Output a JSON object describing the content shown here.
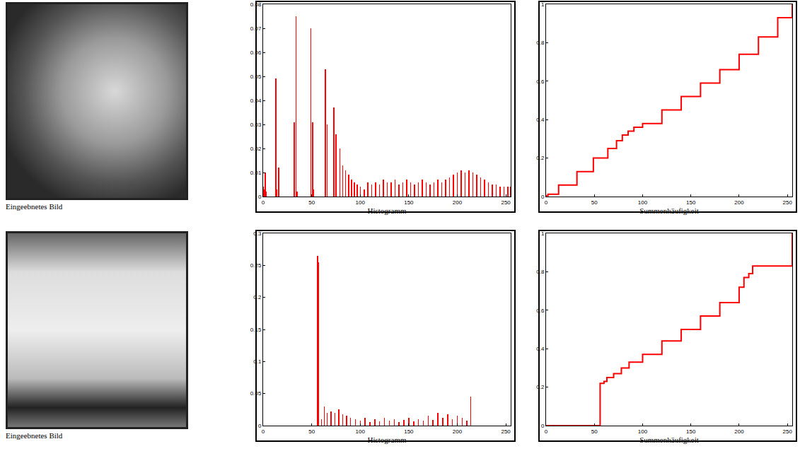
{
  "chart_data": [
    {
      "type": "bar",
      "x_label": "Histogramm",
      "color": "#ff0000",
      "grid": false,
      "x": [
        0,
        1,
        2,
        3,
        13,
        14,
        16,
        32,
        34,
        35,
        49,
        51,
        52,
        64,
        66,
        73,
        75,
        79,
        82,
        85,
        88,
        91,
        94,
        97,
        100,
        104,
        108,
        112,
        116,
        120,
        124,
        128,
        132,
        136,
        140,
        144,
        148,
        152,
        156,
        160,
        164,
        168,
        172,
        176,
        180,
        184,
        188,
        192,
        196,
        200,
        204,
        208,
        212,
        216,
        220,
        224,
        228,
        232,
        236,
        240,
        244,
        248,
        252,
        255
      ],
      "values": [
        0.004,
        0.003,
        0.01,
        0.002,
        0.049,
        0.003,
        0.012,
        0.031,
        0.075,
        0.002,
        0.07,
        0.031,
        0.003,
        0.053,
        0.03,
        0.037,
        0.026,
        0.02,
        0.013,
        0.011,
        0.009,
        0.007,
        0.006,
        0.005,
        0.004,
        0.003,
        0.006,
        0.005,
        0.006,
        0.005,
        0.007,
        0.006,
        0.006,
        0.007,
        0.005,
        0.006,
        0.007,
        0.006,
        0.005,
        0.006,
        0.007,
        0.006,
        0.005,
        0.006,
        0.007,
        0.006,
        0.007,
        0.008,
        0.009,
        0.01,
        0.011,
        0.01,
        0.011,
        0.01,
        0.009,
        0.008,
        0.007,
        0.006,
        0.005,
        0.005,
        0.004,
        0.004,
        0.004,
        0.004
      ],
      "xlim": [
        0,
        255
      ],
      "xticks": [
        0,
        50,
        100,
        150,
        200,
        250
      ],
      "ylim": [
        0,
        0.08
      ],
      "yticks": [
        0,
        0.01,
        0.02,
        0.03,
        0.04,
        0.05,
        0.06,
        0.07,
        0.08
      ]
    },
    {
      "type": "line",
      "line_style": "step",
      "x_label": "Summenhäufigkeit",
      "color": "#ff0000",
      "grid": false,
      "x": [
        0,
        2,
        13,
        32,
        49,
        64,
        73,
        79,
        85,
        91,
        100,
        120,
        140,
        160,
        180,
        200,
        220,
        240,
        255
      ],
      "values": [
        0.005,
        0.012,
        0.06,
        0.13,
        0.2,
        0.25,
        0.29,
        0.32,
        0.34,
        0.36,
        0.38,
        0.45,
        0.52,
        0.59,
        0.66,
        0.74,
        0.83,
        0.93,
        1
      ],
      "xlim": [
        0,
        255
      ],
      "xticks": [
        0,
        50,
        100,
        150,
        200,
        250
      ],
      "ylim": [
        0,
        1
      ],
      "yticks": [
        0,
        0.2,
        0.4,
        0.6,
        0.8,
        1
      ]
    },
    {
      "type": "bar",
      "x_label": "Histogramm",
      "color": "#ff0000",
      "grid": false,
      "x": [
        56,
        57,
        60,
        63,
        66,
        70,
        74,
        78,
        82,
        86,
        90,
        95,
        100,
        105,
        110,
        115,
        120,
        125,
        130,
        135,
        140,
        145,
        150,
        155,
        160,
        165,
        170,
        175,
        180,
        185,
        190,
        195,
        200,
        205,
        210,
        214
      ],
      "values": [
        0.265,
        0.255,
        0.01,
        0.03,
        0.02,
        0.022,
        0.02,
        0.025,
        0.018,
        0.015,
        0.012,
        0.01,
        0.008,
        0.012,
        0.006,
        0.01,
        0.007,
        0.012,
        0.008,
        0.01,
        0.006,
        0.009,
        0.012,
        0.007,
        0.01,
        0.008,
        0.015,
        0.009,
        0.02,
        0.012,
        0.018,
        0.01,
        0.015,
        0.012,
        0.008,
        0.045
      ],
      "xlim": [
        0,
        255
      ],
      "xticks": [
        0,
        50,
        100,
        150,
        200,
        250
      ],
      "ylim": [
        0,
        0.3
      ],
      "yticks": [
        0,
        0.05,
        0.1,
        0.15,
        0.2,
        0.25,
        0.3
      ]
    },
    {
      "type": "line",
      "line_style": "step",
      "x_label": "Summenhäufigkeit",
      "color": "#ff0000",
      "grid": false,
      "x": [
        0,
        55,
        56,
        60,
        63,
        70,
        78,
        86,
        100,
        120,
        140,
        160,
        180,
        200,
        205,
        210,
        214,
        254,
        255
      ],
      "values": [
        0,
        0,
        0.22,
        0.23,
        0.25,
        0.27,
        0.3,
        0.33,
        0.37,
        0.44,
        0.5,
        0.57,
        0.64,
        0.72,
        0.77,
        0.79,
        0.83,
        0.83,
        1
      ],
      "xlim": [
        0,
        255
      ],
      "xticks": [
        0,
        50,
        100,
        150,
        200,
        250
      ],
      "ylim": [
        0,
        1
      ],
      "yticks": [
        0,
        0.2,
        0.4,
        0.6,
        0.8,
        1
      ]
    }
  ],
  "images": [
    {
      "caption": "Eingeebnetes Bild"
    },
    {
      "caption": "Eingeebnetes Bild"
    }
  ]
}
